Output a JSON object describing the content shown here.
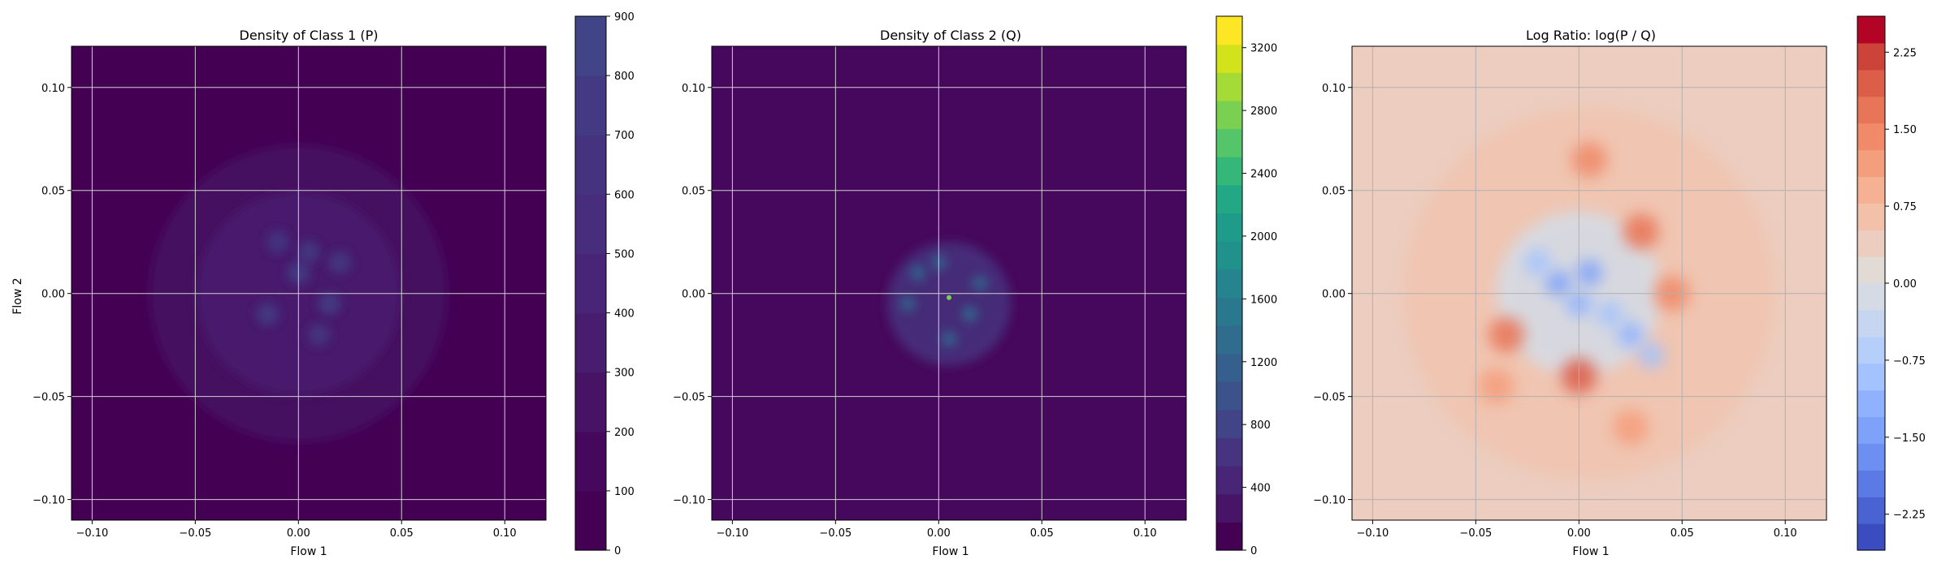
{
  "chart_data": [
    {
      "type": "heatmap",
      "title": "Density of Class 1 (P)",
      "xlabel": "Flow 1",
      "ylabel": "Flow 2",
      "xlim": [
        -0.11,
        0.12
      ],
      "ylim": [
        -0.11,
        0.12
      ],
      "xticks": [
        "−0.10",
        "−0.05",
        "0.00",
        "0.05",
        "0.10"
      ],
      "yticks": [
        "−0.10",
        "−0.05",
        "0.00",
        "0.05",
        "0.10"
      ],
      "grid": true,
      "colormap": "viridis",
      "colorbar": {
        "range": [
          0,
          900
        ],
        "tick_values": [
          0,
          100,
          200,
          300,
          400,
          500,
          600,
          700,
          800,
          900
        ],
        "tick_labels": [
          "0",
          "100",
          "200",
          "300",
          "400",
          "500",
          "600",
          "700",
          "800",
          "900"
        ],
        "levels": 9,
        "colors": [
          "#440154",
          "#46085c",
          "#471365",
          "#481d6f",
          "#482576",
          "#472d7b",
          "#46337f",
          "#443a83",
          "#414487"
        ]
      },
      "background_color": "#440154",
      "density": {
        "center": [
          0.0,
          0.0
        ],
        "spread": 0.045,
        "peak": 850,
        "blobs": [
          {
            "x": 0.0,
            "y": 0.01,
            "v": 0.9
          },
          {
            "x": -0.015,
            "y": -0.01,
            "v": 0.8
          },
          {
            "x": 0.015,
            "y": -0.005,
            "v": 0.85
          },
          {
            "x": 0.005,
            "y": 0.02,
            "v": 0.7
          },
          {
            "x": -0.01,
            "y": 0.025,
            "v": 0.65
          },
          {
            "x": 0.02,
            "y": 0.015,
            "v": 0.7
          },
          {
            "x": 0.01,
            "y": -0.02,
            "v": 0.6
          }
        ]
      }
    },
    {
      "type": "heatmap",
      "title": "Density of Class 2 (Q)",
      "xlabel": "Flow 1",
      "ylabel": "",
      "xlim": [
        -0.11,
        0.12
      ],
      "ylim": [
        -0.11,
        0.12
      ],
      "xticks": [
        "−0.10",
        "−0.05",
        "0.00",
        "0.05",
        "0.10"
      ],
      "yticks": [
        "−0.10",
        "−0.05",
        "0.00",
        "0.05",
        "0.10"
      ],
      "grid": true,
      "colormap": "viridis",
      "colorbar": {
        "range": [
          0,
          3400
        ],
        "tick_values": [
          0,
          400,
          800,
          1200,
          1600,
          2000,
          2400,
          2800,
          3200
        ],
        "tick_labels": [
          "0",
          "400",
          "800",
          "1200",
          "1600",
          "2000",
          "2400",
          "2800",
          "3200"
        ],
        "levels": 17,
        "colors": [
          "#440154",
          "#481467",
          "#482576",
          "#463480",
          "#414487",
          "#3b528b",
          "#355f8d",
          "#2f6c8e",
          "#2a788e",
          "#25848e",
          "#21918c",
          "#1e9c89",
          "#22a884",
          "#35b779",
          "#54c568",
          "#7ad151",
          "#a5db36",
          "#d2e21b",
          "#fde725"
        ]
      },
      "background_color": "#46085c",
      "density": {
        "center": [
          0.005,
          -0.005
        ],
        "spread": 0.02,
        "peak": 3300,
        "hotspot": [
          0.005,
          -0.002
        ],
        "blobs": [
          {
            "x": -0.01,
            "y": 0.01,
            "v": 0.35
          },
          {
            "x": 0.0,
            "y": 0.015,
            "v": 0.3
          },
          {
            "x": 0.015,
            "y": -0.01,
            "v": 0.4
          },
          {
            "x": 0.005,
            "y": -0.022,
            "v": 0.35
          },
          {
            "x": -0.015,
            "y": -0.005,
            "v": 0.3
          },
          {
            "x": 0.02,
            "y": 0.005,
            "v": 0.3
          }
        ]
      }
    },
    {
      "type": "heatmap",
      "title": "Log Ratio: log(P / Q)",
      "xlabel": "Flow 1",
      "ylabel": "",
      "xlim": [
        -0.11,
        0.12
      ],
      "ylim": [
        -0.11,
        0.12
      ],
      "xticks": [
        "−0.10",
        "−0.05",
        "0.00",
        "0.05",
        "0.10"
      ],
      "yticks": [
        "−0.10",
        "−0.05",
        "0.00",
        "0.05",
        "0.10"
      ],
      "grid": true,
      "colormap": "coolwarm",
      "colorbar": {
        "range": [
          -2.6,
          2.6
        ],
        "tick_values": [
          -2.25,
          -1.5,
          -0.75,
          0.0,
          0.75,
          1.5,
          2.25
        ],
        "tick_labels": [
          "−2.25",
          "−1.50",
          "−0.75",
          "0.00",
          "0.75",
          "1.50",
          "2.25"
        ],
        "levels": 20,
        "colors": [
          "#3b4cc0",
          "#4a63d3",
          "#5b7ae5",
          "#6c8ff1",
          "#7ea1fa",
          "#90b2fe",
          "#a3c2fe",
          "#b5cffa",
          "#c6d6f1",
          "#d5dbe5",
          "#e2dad5",
          "#eccdbf",
          "#f3c0a9",
          "#f6b093",
          "#f59e7d",
          "#f08a69",
          "#e87557",
          "#dc5d48",
          "#cc4339",
          "#b40426"
        ]
      },
      "background_color": "#eccdbf",
      "features": {
        "blue": [
          {
            "x": -0.01,
            "y": 0.005,
            "v": -1.6
          },
          {
            "x": 0.005,
            "y": 0.01,
            "v": -1.4
          },
          {
            "x": 0.0,
            "y": -0.005,
            "v": -1.2
          },
          {
            "x": 0.025,
            "y": -0.02,
            "v": -1.3
          },
          {
            "x": 0.035,
            "y": -0.03,
            "v": -1.0
          },
          {
            "x": -0.02,
            "y": 0.015,
            "v": -1.0
          },
          {
            "x": 0.015,
            "y": -0.01,
            "v": -0.9
          }
        ],
        "red": [
          {
            "x": -0.035,
            "y": -0.02,
            "v": 1.9
          },
          {
            "x": 0.0,
            "y": -0.04,
            "v": 2.0
          },
          {
            "x": 0.03,
            "y": 0.03,
            "v": 1.8
          },
          {
            "x": 0.045,
            "y": 0.0,
            "v": 1.5
          },
          {
            "x": 0.005,
            "y": 0.065,
            "v": 1.4
          },
          {
            "x": 0.025,
            "y": -0.065,
            "v": 1.3
          },
          {
            "x": -0.04,
            "y": -0.045,
            "v": 1.1
          }
        ]
      }
    }
  ]
}
